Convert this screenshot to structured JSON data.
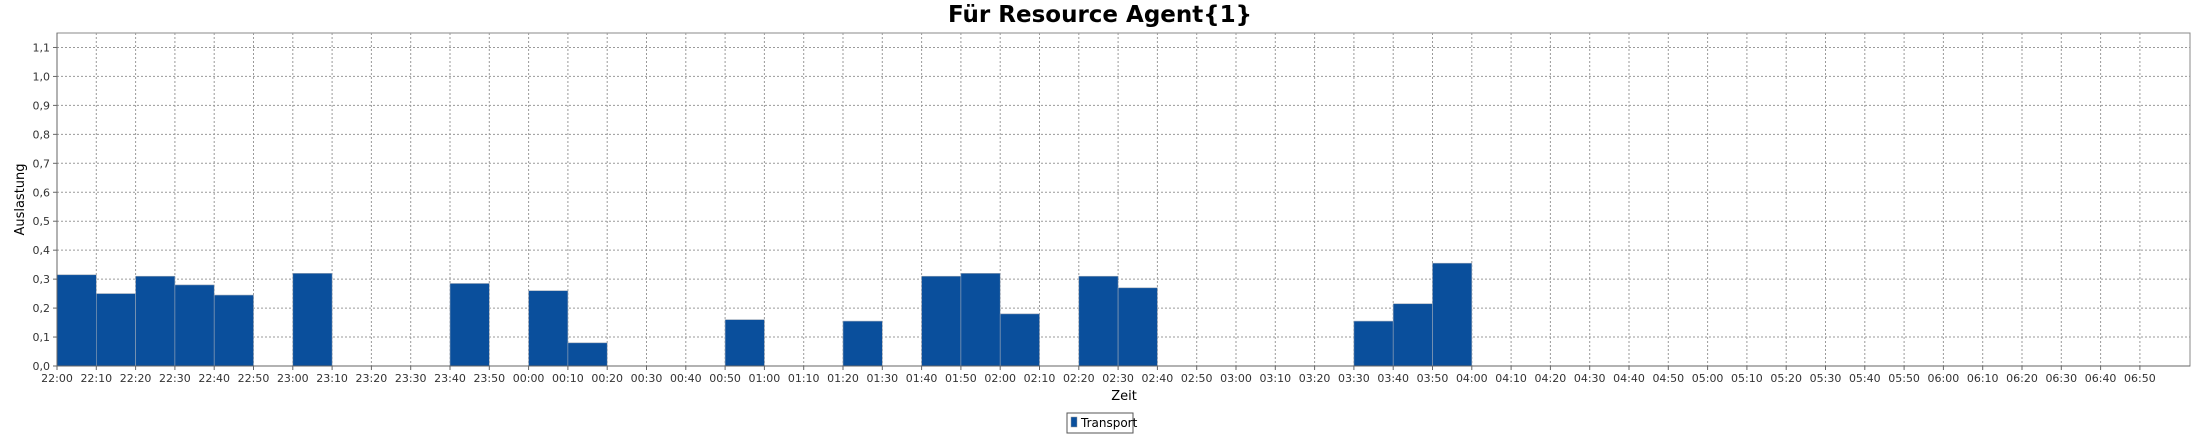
{
  "chart_data": {
    "type": "bar",
    "title": "Für Resource Agent{1}",
    "xlabel": "Zeit",
    "ylabel": "Auslastung",
    "ylim": [
      0,
      1.15
    ],
    "yticks": [
      "0,0",
      "0,1",
      "0,2",
      "0,3",
      "0,4",
      "0,5",
      "0,6",
      "0,7",
      "0,8",
      "0,9",
      "1,0",
      "1,1"
    ],
    "grid": true,
    "legend_position": "bottom",
    "categories": [
      "22:00",
      "22:10",
      "22:20",
      "22:30",
      "22:40",
      "22:50",
      "23:00",
      "23:10",
      "23:20",
      "23:30",
      "23:40",
      "23:50",
      "00:00",
      "00:10",
      "00:20",
      "00:30",
      "00:40",
      "00:50",
      "01:00",
      "01:10",
      "01:20",
      "01:30",
      "01:40",
      "01:50",
      "02:00",
      "02:10",
      "02:20",
      "02:30",
      "02:40",
      "02:50",
      "03:00",
      "03:10",
      "03:20",
      "03:30",
      "03:40",
      "03:50",
      "04:00",
      "04:10",
      "04:20",
      "04:30",
      "04:40",
      "04:50",
      "05:00",
      "05:10",
      "05:20",
      "05:30",
      "05:40",
      "05:50",
      "06:00",
      "06:10",
      "06:20",
      "06:30",
      "06:40",
      "06:50"
    ],
    "series": [
      {
        "name": "Transport",
        "color": "#0a4f9c",
        "values": [
          0.315,
          0.25,
          0.31,
          0.28,
          0.245,
          0,
          0.32,
          0,
          0,
          0,
          0.285,
          0,
          0.26,
          0.08,
          0,
          0,
          0,
          0.16,
          0,
          0,
          0.155,
          0,
          0.31,
          0.32,
          0.18,
          0,
          0.31,
          0.27,
          0,
          0,
          0,
          0,
          0,
          0.155,
          0.215,
          0.355,
          0,
          0,
          0,
          0,
          0,
          0,
          0,
          0,
          0,
          0,
          0,
          0,
          0,
          0,
          0,
          0,
          0,
          0
        ]
      }
    ]
  }
}
